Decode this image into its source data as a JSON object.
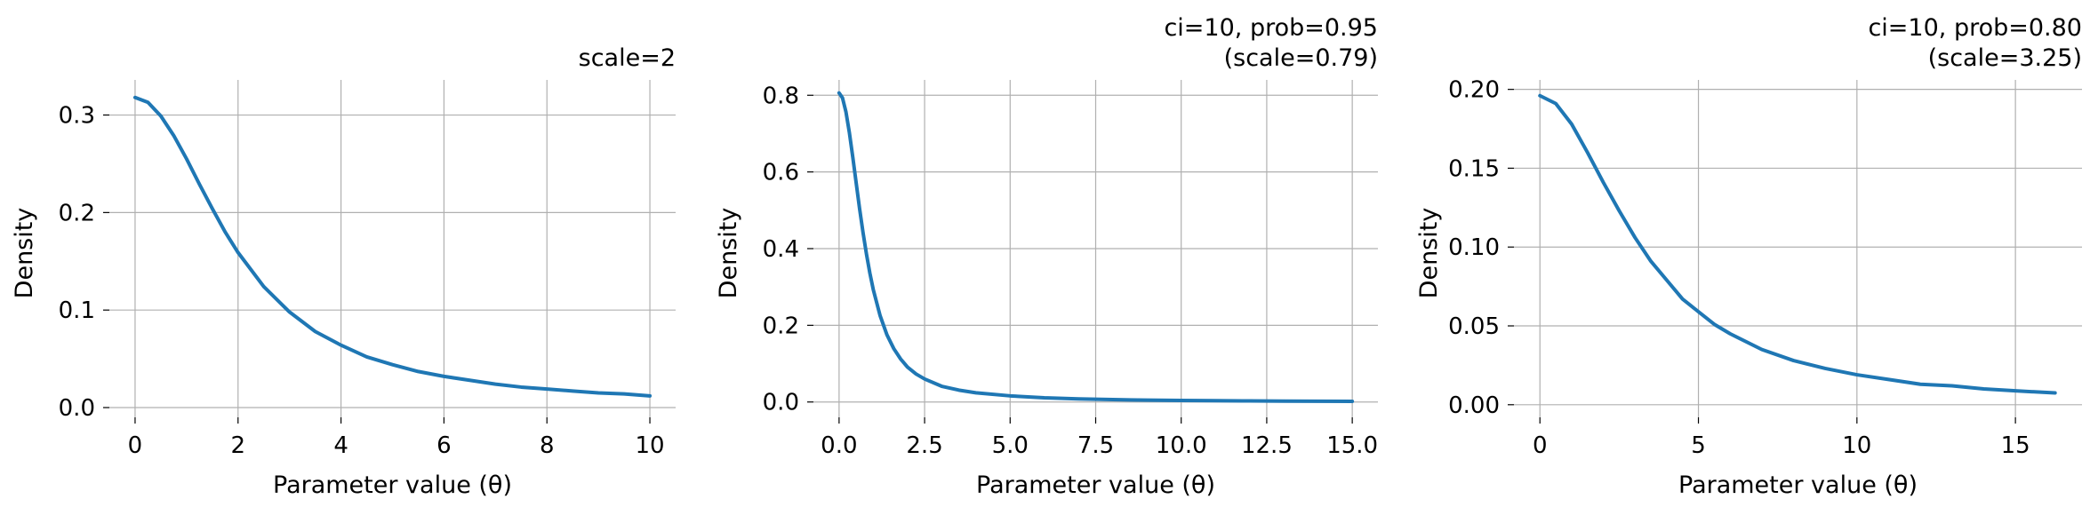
{
  "chart_data": [
    {
      "type": "line",
      "title_lines": [
        "scale=2"
      ],
      "xlabel": "Parameter value (θ)",
      "ylabel": "Density",
      "xlim": [
        -0.5,
        10.5
      ],
      "ylim": [
        -0.01,
        0.336
      ],
      "xticks": [
        0,
        2,
        4,
        6,
        8,
        10
      ],
      "xtick_labels": [
        "0",
        "2",
        "4",
        "6",
        "8",
        "10"
      ],
      "yticks": [
        0.0,
        0.1,
        0.2,
        0.3
      ],
      "ytick_labels": [
        "0.0",
        "0.1",
        "0.2",
        "0.3"
      ],
      "grid": true,
      "series": [
        {
          "color": "#1f77b4",
          "x": [
            0,
            0.25,
            0.5,
            0.75,
            1,
            1.25,
            1.5,
            1.75,
            2,
            2.5,
            3,
            3.5,
            4,
            4.5,
            5,
            5.5,
            6,
            6.5,
            7,
            7.5,
            8,
            8.5,
            9,
            9.5,
            10
          ],
          "y": [
            0.318,
            0.313,
            0.299,
            0.279,
            0.255,
            0.229,
            0.204,
            0.18,
            0.159,
            0.124,
            0.098,
            0.078,
            0.064,
            0.052,
            0.044,
            0.037,
            0.032,
            0.028,
            0.024,
            0.021,
            0.019,
            0.017,
            0.015,
            0.014,
            0.012
          ]
        }
      ]
    },
    {
      "type": "line",
      "title_lines": [
        "ci=10, prob=0.95",
        "(scale=0.79)"
      ],
      "xlabel": "Parameter value (θ)",
      "ylabel": "Density",
      "xlim": [
        -0.75,
        15.75
      ],
      "ylim": [
        -0.04,
        0.84
      ],
      "xticks": [
        0,
        2.5,
        5,
        7.5,
        10,
        12.5,
        15
      ],
      "xtick_labels": [
        "0.0",
        "2.5",
        "5.0",
        "7.5",
        "10.0",
        "12.5",
        "15.0"
      ],
      "yticks": [
        0.0,
        0.2,
        0.4,
        0.6,
        0.8
      ],
      "ytick_labels": [
        "0.0",
        "0.2",
        "0.4",
        "0.6",
        "0.8"
      ],
      "grid": true,
      "series": [
        {
          "color": "#1f77b4",
          "x": [
            0,
            0.1,
            0.2,
            0.3,
            0.4,
            0.5,
            0.6,
            0.7,
            0.8,
            0.9,
            1.0,
            1.2,
            1.4,
            1.6,
            1.8,
            2.0,
            2.25,
            2.5,
            3,
            3.5,
            4,
            5,
            6,
            7,
            8,
            9,
            10,
            11,
            12,
            13,
            14,
            15
          ],
          "y": [
            0.806,
            0.793,
            0.757,
            0.703,
            0.639,
            0.571,
            0.504,
            0.442,
            0.386,
            0.336,
            0.293,
            0.225,
            0.175,
            0.139,
            0.112,
            0.091,
            0.073,
            0.06,
            0.041,
            0.031,
            0.024,
            0.016,
            0.011,
            0.008,
            0.0062,
            0.0049,
            0.004,
            0.0033,
            0.0028,
            0.0024,
            0.002,
            0.0018
          ]
        }
      ]
    },
    {
      "type": "line",
      "title_lines": [
        "ci=10, prob=0.80",
        "(scale=3.25)"
      ],
      "xlabel": "Parameter value (θ)",
      "ylabel": "Density",
      "xlim": [
        -0.82,
        17.1
      ],
      "ylim": [
        -0.008,
        0.206
      ],
      "xticks": [
        0,
        5,
        10,
        15
      ],
      "xtick_labels": [
        "0",
        "5",
        "10",
        "15"
      ],
      "yticks": [
        0.0,
        0.05,
        0.1,
        0.15,
        0.2
      ],
      "ytick_labels": [
        "0.00",
        "0.05",
        "0.10",
        "0.15",
        "0.20"
      ],
      "grid": true,
      "series": [
        {
          "color": "#1f77b4",
          "x": [
            0,
            0.5,
            1,
            1.5,
            2,
            2.5,
            3,
            3.5,
            4,
            4.5,
            5,
            5.5,
            6,
            7,
            8,
            9,
            10,
            11,
            12,
            13,
            14,
            15,
            16.25
          ],
          "y": [
            0.196,
            0.191,
            0.178,
            0.16,
            0.141,
            0.123,
            0.106,
            0.091,
            0.079,
            0.067,
            0.059,
            0.051,
            0.045,
            0.035,
            0.028,
            0.023,
            0.019,
            0.016,
            0.013,
            0.012,
            0.01,
            0.0088,
            0.0075
          ]
        }
      ]
    }
  ]
}
